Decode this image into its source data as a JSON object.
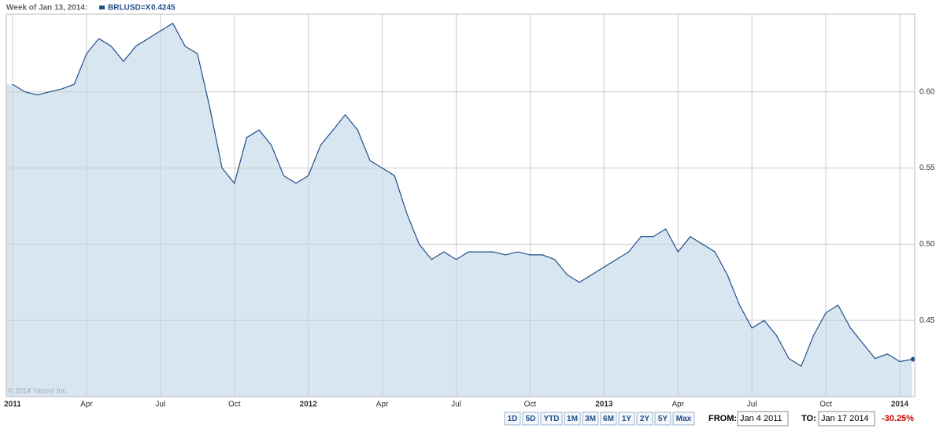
{
  "chart_data": {
    "type": "line",
    "header_label": "Week of Jan 13, 2014:",
    "credit": "© 2014 Yahoo! Inc.",
    "categories": [
      "2011",
      null,
      null,
      null,
      null,
      null,
      "Apr",
      null,
      null,
      null,
      null,
      null,
      "Jul",
      null,
      null,
      null,
      null,
      null,
      "Oct",
      null,
      null,
      null,
      null,
      null,
      "2012",
      null,
      null,
      null,
      null,
      null,
      "Apr",
      null,
      null,
      null,
      null,
      null,
      "Jul",
      null,
      null,
      null,
      null,
      null,
      "Oct",
      null,
      null,
      null,
      null,
      null,
      "2013",
      null,
      null,
      null,
      null,
      null,
      "Apr",
      null,
      null,
      null,
      null,
      null,
      "Jul",
      null,
      null,
      null,
      null,
      null,
      "Oct",
      null,
      null,
      null,
      null,
      null,
      "2014",
      null
    ],
    "series": [
      {
        "name": "BRLUSD=X",
        "color": "#1f4e89",
        "fill": "#d8e6f2",
        "values": [
          0.605,
          0.6,
          0.598,
          0.6,
          0.602,
          0.605,
          0.625,
          0.635,
          0.63,
          0.62,
          0.63,
          0.635,
          0.64,
          0.645,
          0.63,
          0.625,
          0.59,
          0.55,
          0.54,
          0.57,
          0.575,
          0.565,
          0.545,
          0.54,
          0.545,
          0.565,
          0.575,
          0.585,
          0.575,
          0.555,
          0.55,
          0.545,
          0.52,
          0.5,
          0.49,
          0.495,
          0.49,
          0.495,
          0.495,
          0.495,
          0.493,
          0.495,
          0.493,
          0.493,
          0.49,
          0.48,
          0.475,
          0.48,
          0.485,
          0.49,
          0.495,
          0.505,
          0.505,
          0.51,
          0.495,
          0.505,
          0.5,
          0.495,
          0.48,
          0.46,
          0.445,
          0.45,
          0.44,
          0.425,
          0.42,
          0.44,
          0.455,
          0.46,
          0.445,
          0.435,
          0.425,
          0.428,
          0.423,
          0.4245
        ]
      }
    ],
    "ylim": [
      0.4,
      0.651
    ],
    "yticks": [
      0.45,
      {
        "value": 0.5,
        "label": "0.50"
      },
      0.55,
      {
        "value": 0.6,
        "label": "0.60"
      }
    ],
    "grid": true
  },
  "controls": {
    "ranges": [
      "1D",
      "5D",
      "YTD",
      "1M",
      "3M",
      "6M",
      "1Y",
      "2Y",
      "5Y",
      "Max"
    ],
    "from_label": "FROM:",
    "from_value": "Jan 4 2011",
    "to_label": "TO:",
    "to_value": "Jan 17 2014",
    "change": "-30.25%"
  }
}
